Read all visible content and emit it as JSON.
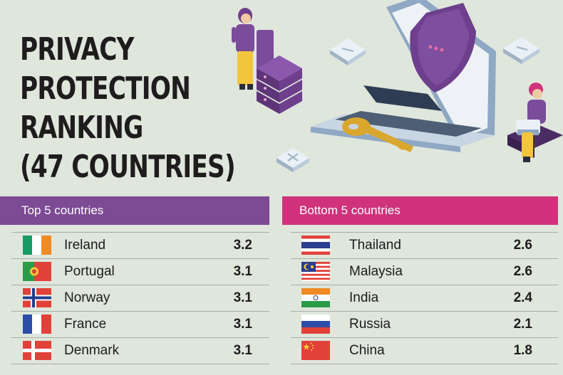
{
  "title": {
    "line1": "PRIVACY",
    "line2": "PROTECTION",
    "line3": "RANKING",
    "line4": "(47 COUNTRIES)"
  },
  "top": {
    "heading": "Top 5 countries",
    "rows": [
      {
        "country": "Ireland",
        "score": "3.2",
        "flag": "ireland-flag"
      },
      {
        "country": "Portugal",
        "score": "3.1",
        "flag": "portugal-flag"
      },
      {
        "country": "Norway",
        "score": "3.1",
        "flag": "norway-flag"
      },
      {
        "country": "France",
        "score": "3.1",
        "flag": "france-flag"
      },
      {
        "country": "Denmark",
        "score": "3.1",
        "flag": "denmark-flag"
      }
    ]
  },
  "bottom": {
    "heading": "Bottom 5 countries",
    "rows": [
      {
        "country": "Thailand",
        "score": "2.6",
        "flag": "thailand-flag"
      },
      {
        "country": "Malaysia",
        "score": "2.6",
        "flag": "malaysia-flag"
      },
      {
        "country": "India",
        "score": "2.4",
        "flag": "india-flag"
      },
      {
        "country": "Russia",
        "score": "2.1",
        "flag": "russia-flag"
      },
      {
        "country": "China",
        "score": "1.8",
        "flag": "china-flag"
      }
    ]
  },
  "colors": {
    "background": "#dfe6dc",
    "top_header": "#7c4b94",
    "bottom_header": "#d0337b",
    "text": "#1e1c1d"
  }
}
